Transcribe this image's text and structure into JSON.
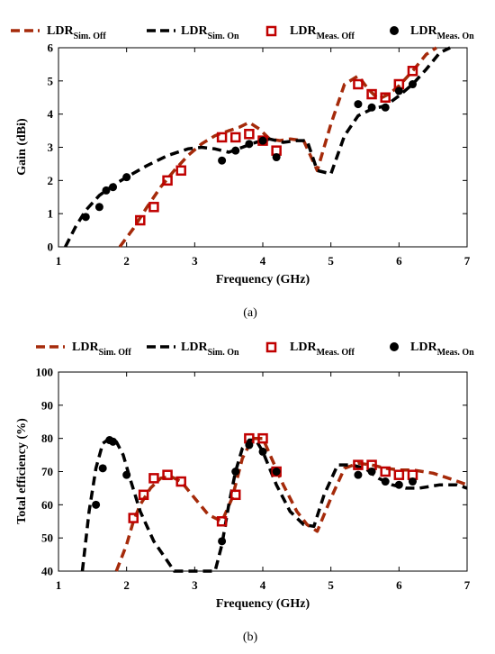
{
  "chart_data": [
    {
      "type": "line",
      "caption": "(a)",
      "xlabel": "Frequency (GHz)",
      "ylabel": "Gain (dBi)",
      "xlim": [
        1,
        7
      ],
      "ylim": [
        0,
        6
      ],
      "xticks": [
        1,
        2,
        3,
        4,
        5,
        6,
        7
      ],
      "yticks": [
        0,
        1,
        2,
        3,
        4,
        5,
        6
      ],
      "grid": false,
      "legend_position": "top",
      "series": [
        {
          "name_main": "LDR",
          "name_sub": "Sim. Off",
          "style": "dashed",
          "color": "#a52a0a",
          "x": [
            1.9,
            2.1,
            2.3,
            2.5,
            2.7,
            2.9,
            3.1,
            3.3,
            3.5,
            3.65,
            3.8,
            3.95,
            4.1,
            4.25,
            4.4,
            4.6,
            4.8,
            5.0,
            5.2,
            5.4,
            5.55,
            5.7,
            5.85,
            6.0,
            6.2,
            6.4,
            6.55
          ],
          "y": [
            0,
            0.55,
            1.2,
            1.8,
            2.3,
            2.75,
            3.1,
            3.35,
            3.5,
            3.6,
            3.75,
            3.55,
            3.25,
            3.2,
            3.25,
            3.2,
            2.3,
            3.7,
            4.9,
            5.15,
            4.75,
            4.45,
            4.6,
            4.85,
            5.3,
            5.8,
            6.0
          ]
        },
        {
          "name_main": "LDR",
          "name_sub": "Sim. On",
          "style": "dashed",
          "color": "#000000",
          "x": [
            1.1,
            1.25,
            1.4,
            1.6,
            1.8,
            2.0,
            2.3,
            2.6,
            2.9,
            3.1,
            3.3,
            3.5,
            3.7,
            3.9,
            4.1,
            4.3,
            4.5,
            4.65,
            4.8,
            5.0,
            5.2,
            5.4,
            5.6,
            5.8,
            6.0,
            6.2,
            6.4,
            6.6,
            6.75
          ],
          "y": [
            0,
            0.6,
            1.1,
            1.55,
            1.85,
            2.1,
            2.45,
            2.75,
            2.95,
            3.0,
            2.95,
            2.85,
            3.0,
            3.15,
            3.25,
            3.15,
            3.2,
            3.2,
            2.3,
            2.2,
            3.35,
            3.95,
            4.15,
            4.25,
            4.55,
            4.9,
            5.35,
            5.85,
            6.0
          ]
        },
        {
          "name_main": "LDR",
          "name_sub": "Meas. Off",
          "style": "square",
          "color": "#c00000",
          "x": [
            2.2,
            2.4,
            2.6,
            2.8,
            3.4,
            3.6,
            3.8,
            4.0,
            4.2,
            5.4,
            5.6,
            5.8,
            6.0,
            6.2
          ],
          "y": [
            0.8,
            1.2,
            2.0,
            2.3,
            3.3,
            3.3,
            3.4,
            3.2,
            2.9,
            4.9,
            4.6,
            4.5,
            4.9,
            5.3
          ]
        },
        {
          "name_main": "LDR",
          "name_sub": "Meas. On",
          "style": "dot",
          "color": "#000000",
          "x": [
            1.4,
            1.6,
            1.7,
            1.8,
            2.0,
            3.4,
            3.6,
            3.8,
            4.0,
            4.2,
            5.4,
            5.6,
            5.8,
            6.0,
            6.2
          ],
          "y": [
            0.9,
            1.2,
            1.7,
            1.8,
            2.1,
            2.6,
            2.9,
            3.1,
            3.2,
            2.7,
            4.3,
            4.2,
            4.2,
            4.7,
            4.9
          ]
        }
      ]
    },
    {
      "type": "line",
      "caption": "(b)",
      "xlabel": "Frequency (GHz)",
      "ylabel": "Total efficiency (%)",
      "xlim": [
        1,
        7
      ],
      "ylim": [
        40,
        100
      ],
      "xticks": [
        1,
        2,
        3,
        4,
        5,
        6,
        7
      ],
      "yticks": [
        40,
        50,
        60,
        70,
        80,
        90,
        100
      ],
      "grid": false,
      "legend_position": "top",
      "series": [
        {
          "name_main": "LDR",
          "name_sub": "Sim. Off",
          "style": "dashed",
          "color": "#a52a0a",
          "x": [
            1.85,
            2.0,
            2.1,
            2.2,
            2.35,
            2.5,
            2.65,
            2.8,
            3.0,
            3.2,
            3.4,
            3.55,
            3.7,
            3.85,
            4.0,
            4.15,
            4.3,
            4.5,
            4.65,
            4.8,
            5.0,
            5.2,
            5.4,
            5.6,
            5.8,
            6.0,
            6.2,
            6.5,
            6.8,
            7.0
          ],
          "y": [
            40,
            48,
            55,
            60,
            65,
            68,
            68.5,
            67,
            62,
            57,
            55,
            62,
            74,
            80,
            80,
            73,
            66,
            58,
            54,
            52,
            62,
            71,
            72.5,
            72,
            71,
            70.5,
            70.5,
            69.5,
            67.5,
            66
          ]
        },
        {
          "name_main": "LDR",
          "name_sub": "Sim. On",
          "style": "dashed",
          "color": "#000000",
          "x": [
            1.35,
            1.45,
            1.55,
            1.65,
            1.75,
            1.85,
            1.95,
            2.05,
            2.2,
            2.4,
            2.6,
            2.7,
            3.3,
            3.4,
            3.5,
            3.6,
            3.7,
            3.8,
            3.9,
            4.0,
            4.2,
            4.4,
            4.6,
            4.75,
            4.9,
            5.1,
            5.3,
            5.5,
            5.7,
            5.9,
            6.1,
            6.3,
            6.6,
            6.85,
            7.0
          ],
          "y": [
            40,
            58,
            71,
            78.5,
            80,
            79,
            75,
            68,
            58,
            49,
            43,
            40,
            40,
            48,
            60,
            70,
            77,
            79.5,
            79.5,
            76,
            66,
            58,
            54,
            53.5,
            63,
            72,
            72,
            71,
            68,
            66,
            65,
            65,
            66,
            66,
            65
          ]
        },
        {
          "name_main": "LDR",
          "name_sub": "Meas. Off",
          "style": "square",
          "color": "#c00000",
          "x": [
            2.1,
            2.25,
            2.4,
            2.6,
            2.8,
            3.4,
            3.6,
            3.8,
            4.0,
            4.2,
            5.4,
            5.6,
            5.8,
            6.0,
            6.2
          ],
          "y": [
            56,
            63,
            68,
            69,
            67,
            55,
            63,
            80,
            80,
            70,
            72,
            72,
            70,
            69,
            69
          ]
        },
        {
          "name_main": "LDR",
          "name_sub": "Meas. On",
          "style": "dot",
          "color": "#000000",
          "x": [
            1.55,
            1.65,
            1.75,
            1.8,
            2.0,
            3.4,
            3.6,
            3.8,
            4.0,
            4.2,
            5.4,
            5.6,
            5.8,
            6.0,
            6.2
          ],
          "y": [
            60,
            71,
            79.5,
            79,
            69,
            49,
            70,
            78,
            76,
            70,
            69,
            70,
            67,
            66,
            67
          ]
        }
      ]
    }
  ]
}
